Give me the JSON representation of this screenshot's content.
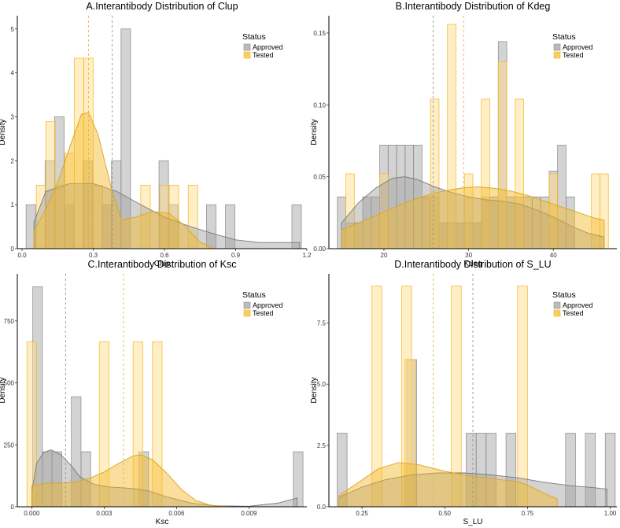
{
  "colors": {
    "approved": "#9e9e9e",
    "tested": "#f5b823",
    "axis": "#000000",
    "vline_approved": "#8c8c8c",
    "vline_tested": "#e0b040"
  },
  "legend": {
    "title": "Status",
    "approved": "Approved",
    "tested": "Tested",
    "position": "top-right"
  },
  "chart_data": [
    {
      "type": "histogram-density",
      "title": "A.Interantibody Distribution of Clup",
      "xlabel": "Clup",
      "ylabel": "Density",
      "xlim": [
        -0.02,
        1.2
      ],
      "ylim": [
        0,
        5.3
      ],
      "xticks": [
        0.0,
        0.3,
        0.6,
        0.9,
        1.2
      ],
      "xtick_labels": [
        "0.0",
        "0.3",
        "0.6",
        "0.9",
        "1.2"
      ],
      "yticks": [
        0,
        1,
        2,
        3,
        4,
        5
      ],
      "ytick_labels": [
        "0",
        "1",
        "2",
        "3",
        "4",
        "5"
      ],
      "grid": false,
      "bins": {
        "Approved": [
          [
            0.017,
            0.057,
            1
          ],
          [
            0.097,
            0.137,
            2
          ],
          [
            0.137,
            0.177,
            3
          ],
          [
            0.177,
            0.217,
            1
          ],
          [
            0.257,
            0.297,
            2
          ],
          [
            0.337,
            0.377,
            1
          ],
          [
            0.377,
            0.417,
            2
          ],
          [
            0.417,
            0.457,
            5
          ],
          [
            0.577,
            0.617,
            2
          ],
          [
            0.617,
            0.657,
            1
          ],
          [
            0.777,
            0.817,
            1
          ],
          [
            0.857,
            0.897,
            1
          ],
          [
            1.137,
            1.177,
            1
          ]
        ],
        "Tested": [
          [
            0.06,
            0.1,
            1.444
          ],
          [
            0.1,
            0.14,
            2.889
          ],
          [
            0.14,
            0.18,
            1.444
          ],
          [
            0.18,
            0.22,
            2.167
          ],
          [
            0.22,
            0.26,
            4.333
          ],
          [
            0.26,
            0.3,
            4.333
          ],
          [
            0.3,
            0.34,
            1.444
          ],
          [
            0.5,
            0.54,
            1.444
          ],
          [
            0.58,
            0.62,
            1.444
          ],
          [
            0.62,
            0.66,
            1.444
          ],
          [
            0.7,
            0.74,
            1.444
          ]
        ]
      },
      "density": {
        "Approved": [
          [
            0.05,
            0.6
          ],
          [
            0.1,
            1.3
          ],
          [
            0.2,
            1.48
          ],
          [
            0.3,
            1.48
          ],
          [
            0.4,
            1.3
          ],
          [
            0.5,
            1.0
          ],
          [
            0.6,
            0.72
          ],
          [
            0.7,
            0.52
          ],
          [
            0.8,
            0.35
          ],
          [
            0.9,
            0.2
          ],
          [
            1.0,
            0.14
          ],
          [
            1.1,
            0.14
          ],
          [
            1.17,
            0.14
          ]
        ],
        "Tested": [
          [
            0.05,
            0.4
          ],
          [
            0.1,
            0.9
          ],
          [
            0.15,
            1.5
          ],
          [
            0.2,
            2.3
          ],
          [
            0.25,
            3.05
          ],
          [
            0.28,
            3.1
          ],
          [
            0.32,
            2.6
          ],
          [
            0.38,
            1.3
          ],
          [
            0.42,
            0.65
          ],
          [
            0.48,
            0.72
          ],
          [
            0.55,
            0.85
          ],
          [
            0.62,
            0.8
          ],
          [
            0.68,
            0.55
          ],
          [
            0.75,
            0.15
          ],
          [
            0.8,
            0.03
          ]
        ]
      },
      "means": {
        "Approved": 0.38,
        "Tested": 0.28
      }
    },
    {
      "type": "histogram-density",
      "title": "B.Interantibody Distribution of Kdeg",
      "xlabel": "Kdeg",
      "ylabel": "Density",
      "xlim": [
        13.5,
        47.5
      ],
      "ylim": [
        0,
        0.162
      ],
      "xticks": [
        20,
        30,
        40
      ],
      "xtick_labels": [
        "20",
        "30",
        "40"
      ],
      "yticks": [
        0,
        0.05,
        0.1,
        0.15
      ],
      "ytick_labels": [
        "0.00",
        "0.05",
        "0.10",
        "0.15"
      ],
      "grid": false,
      "bins": {
        "Approved": [
          [
            14.5,
            15.5,
            0.036
          ],
          [
            15.5,
            16.5,
            0.018
          ],
          [
            16.5,
            17.5,
            0.018
          ],
          [
            17.5,
            18.5,
            0.036
          ],
          [
            18.5,
            19.5,
            0.036
          ],
          [
            19.5,
            20.5,
            0.072
          ],
          [
            20.5,
            21.5,
            0.072
          ],
          [
            21.5,
            22.5,
            0.072
          ],
          [
            22.5,
            23.5,
            0.072
          ],
          [
            23.5,
            24.5,
            0.072
          ],
          [
            24.5,
            25.5,
            0.036
          ],
          [
            25.5,
            26.5,
            0.036
          ],
          [
            26.5,
            27.5,
            0.018
          ],
          [
            27.5,
            28.5,
            0.018
          ],
          [
            28.5,
            29.5,
            0.018
          ],
          [
            29.5,
            30.5,
            0.018
          ],
          [
            30.5,
            31.5,
            0.018
          ],
          [
            31.5,
            32.5,
            0.036
          ],
          [
            32.5,
            33.5,
            0.036
          ],
          [
            33.5,
            34.5,
            0.144
          ],
          [
            34.5,
            35.5,
            0.036
          ],
          [
            35.5,
            36.5,
            0.036
          ],
          [
            36.5,
            37.5,
            0.036
          ],
          [
            37.5,
            38.5,
            0.036
          ],
          [
            38.5,
            39.5,
            0.036
          ],
          [
            39.5,
            40.5,
            0.054
          ],
          [
            40.5,
            41.5,
            0.072
          ],
          [
            41.5,
            42.5,
            0.036
          ]
        ],
        "Tested": [
          [
            15.5,
            16.5,
            0.052
          ],
          [
            19.5,
            20.5,
            0.052
          ],
          [
            25.5,
            26.5,
            0.104
          ],
          [
            27.5,
            28.5,
            0.156
          ],
          [
            29.5,
            30.5,
            0.052
          ],
          [
            31.5,
            32.5,
            0.104
          ],
          [
            33.5,
            34.5,
            0.13
          ],
          [
            35.5,
            36.5,
            0.104
          ],
          [
            39.5,
            40.5,
            0.052
          ],
          [
            44.5,
            45.5,
            0.052
          ],
          [
            45.5,
            46.5,
            0.052
          ]
        ]
      },
      "density": {
        "Approved": [
          [
            15,
            0.018
          ],
          [
            17,
            0.032
          ],
          [
            19,
            0.042
          ],
          [
            21,
            0.049
          ],
          [
            22.5,
            0.05
          ],
          [
            24,
            0.048
          ],
          [
            26,
            0.043
          ],
          [
            28,
            0.039
          ],
          [
            30,
            0.036
          ],
          [
            32,
            0.034
          ],
          [
            34,
            0.033
          ],
          [
            36,
            0.031
          ],
          [
            38,
            0.027
          ],
          [
            40,
            0.022
          ],
          [
            42,
            0.016
          ],
          [
            44,
            0.011
          ],
          [
            46,
            0.008
          ]
        ],
        "Tested": [
          [
            15,
            0.013
          ],
          [
            17,
            0.018
          ],
          [
            19,
            0.023
          ],
          [
            21,
            0.028
          ],
          [
            23,
            0.033
          ],
          [
            25,
            0.037
          ],
          [
            27,
            0.04
          ],
          [
            29,
            0.042
          ],
          [
            31,
            0.043
          ],
          [
            33,
            0.042
          ],
          [
            35,
            0.04
          ],
          [
            37,
            0.037
          ],
          [
            39,
            0.033
          ],
          [
            41,
            0.029
          ],
          [
            43,
            0.025
          ],
          [
            45,
            0.021
          ],
          [
            46,
            0.02
          ]
        ]
      },
      "means": {
        "Approved": 25.8,
        "Tested": 29.4
      }
    },
    {
      "type": "histogram-density",
      "title": "C.Interantibody Distribution of Ksc",
      "xlabel": "Ksc",
      "ylabel": "Density",
      "xlim": [
        -0.0006,
        0.0114
      ],
      "ylim": [
        0,
        940
      ],
      "xticks": [
        0.0,
        0.003,
        0.006,
        0.009
      ],
      "xtick_labels": [
        "0.000",
        "0.003",
        "0.006",
        "0.009"
      ],
      "yticks": [
        0,
        250,
        500,
        750
      ],
      "ytick_labels": [
        "0",
        "250",
        "500",
        "750"
      ],
      "grid": false,
      "bins": {
        "Approved": [
          [
            4e-05,
            0.00044,
            888
          ],
          [
            0.00044,
            0.00084,
            222
          ],
          [
            0.00084,
            0.00124,
            222
          ],
          [
            0.00164,
            0.00204,
            444
          ],
          [
            0.00204,
            0.00244,
            222
          ],
          [
            0.00444,
            0.00484,
            222
          ],
          [
            0.01084,
            0.01124,
            222
          ]
        ],
        "Tested": [
          [
            -0.0002,
            0.0002,
            666
          ],
          [
            0.0028,
            0.0032,
            666
          ],
          [
            0.0042,
            0.0046,
            666
          ],
          [
            0.005,
            0.0054,
            666
          ]
        ]
      },
      "density": {
        "Approved": [
          [
            0.0,
            60
          ],
          [
            0.0002,
            175
          ],
          [
            0.0005,
            220
          ],
          [
            0.0008,
            230
          ],
          [
            0.0012,
            210
          ],
          [
            0.0016,
            170
          ],
          [
            0.002,
            120
          ],
          [
            0.0026,
            90
          ],
          [
            0.0032,
            80
          ],
          [
            0.004,
            75
          ],
          [
            0.0048,
            65
          ],
          [
            0.0056,
            40
          ],
          [
            0.0066,
            15
          ],
          [
            0.0076,
            4
          ],
          [
            0.009,
            2
          ],
          [
            0.0102,
            15
          ],
          [
            0.011,
            35
          ]
        ],
        "Tested": [
          [
            0.0,
            85
          ],
          [
            0.0006,
            95
          ],
          [
            0.0012,
            95
          ],
          [
            0.0018,
            100
          ],
          [
            0.0024,
            115
          ],
          [
            0.003,
            140
          ],
          [
            0.0036,
            175
          ],
          [
            0.0042,
            205
          ],
          [
            0.0045,
            210
          ],
          [
            0.005,
            190
          ],
          [
            0.0056,
            135
          ],
          [
            0.0062,
            70
          ],
          [
            0.0068,
            25
          ],
          [
            0.0074,
            6
          ],
          [
            0.0082,
            1
          ]
        ]
      },
      "means": {
        "Approved": 0.0014,
        "Tested": 0.0038
      }
    },
    {
      "type": "histogram-density",
      "title": "D.Interantibody Distribution of S_LU",
      "xlabel": "S_LU",
      "ylabel": "Density",
      "xlim": [
        0.15,
        1.02
      ],
      "ylim": [
        0,
        9.5
      ],
      "xticks": [
        0.25,
        0.5,
        0.75,
        1.0
      ],
      "xtick_labels": [
        "0.25",
        "0.50",
        "0.75",
        "1.00"
      ],
      "yticks": [
        0,
        2.5,
        5,
        7.5
      ],
      "ytick_labels": [
        "0.0",
        "2.5",
        "5.0",
        "7.5"
      ],
      "grid": false,
      "bins": {
        "Approved": [
          [
            0.175,
            0.205,
            3
          ],
          [
            0.385,
            0.415,
            6
          ],
          [
            0.565,
            0.595,
            3
          ],
          [
            0.595,
            0.625,
            3
          ],
          [
            0.625,
            0.655,
            3
          ],
          [
            0.685,
            0.715,
            3
          ],
          [
            0.865,
            0.895,
            3
          ],
          [
            0.925,
            0.955,
            3
          ],
          [
            0.985,
            1.015,
            3
          ]
        ],
        "Tested": [
          [
            0.28,
            0.31,
            9
          ],
          [
            0.37,
            0.4,
            9
          ],
          [
            0.38,
            0.41,
            6
          ],
          [
            0.52,
            0.55,
            9
          ],
          [
            0.72,
            0.75,
            9
          ]
        ]
      },
      "density": {
        "Approved": [
          [
            0.18,
            0.38
          ],
          [
            0.25,
            0.8
          ],
          [
            0.32,
            1.1
          ],
          [
            0.4,
            1.3
          ],
          [
            0.48,
            1.38
          ],
          [
            0.56,
            1.38
          ],
          [
            0.64,
            1.3
          ],
          [
            0.72,
            1.18
          ],
          [
            0.8,
            1.0
          ],
          [
            0.88,
            0.86
          ],
          [
            0.95,
            0.78
          ],
          [
            0.99,
            0.72
          ]
        ],
        "Tested": [
          [
            0.18,
            0.45
          ],
          [
            0.24,
            1.0
          ],
          [
            0.3,
            1.55
          ],
          [
            0.36,
            1.8
          ],
          [
            0.42,
            1.72
          ],
          [
            0.5,
            1.45
          ],
          [
            0.58,
            1.25
          ],
          [
            0.66,
            1.12
          ],
          [
            0.72,
            1.02
          ],
          [
            0.76,
            0.82
          ],
          [
            0.8,
            0.55
          ],
          [
            0.84,
            0.32
          ]
        ]
      },
      "means": {
        "Approved": 0.585,
        "Tested": 0.465
      }
    }
  ]
}
